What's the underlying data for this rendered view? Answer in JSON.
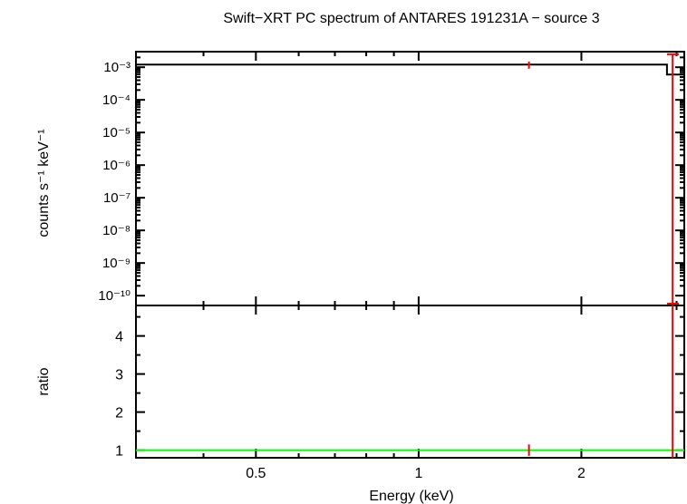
{
  "title": "Swift−XRT PC spectrum of ANTARES 191231A − source 3",
  "colors": {
    "frame": "#000000",
    "data": "#ff0000",
    "model": "#000000",
    "unity": "#00ff00"
  },
  "chart_data": [
    {
      "type": "line",
      "panel": "top",
      "ylabel": "counts s⁻¹ keV⁻¹",
      "yscale": "log",
      "ylim": [
        5e-11,
        0.003
      ],
      "y_ticklabels": [
        "10⁻³",
        "10⁻⁴",
        "10⁻⁵",
        "10⁻⁶",
        "10⁻⁷",
        "10⁻⁸",
        "10⁻⁹",
        "10⁻¹⁰"
      ],
      "y_tickvalues": [
        0.001,
        0.0001,
        1e-05,
        1e-06,
        1e-07,
        1e-08,
        1e-09,
        1e-10
      ],
      "data_points": [
        {
          "x": 1.6,
          "y": 0.0012,
          "y_err_low": 0.0009,
          "y_err_high": 0.0015
        },
        {
          "x": 2.95,
          "y": 0.0025,
          "x_err_low": 2.88,
          "x_err_high": 3.03,
          "y_low": 5e-11
        }
      ],
      "model": [
        {
          "x": 0.3,
          "y": 0.0012
        },
        {
          "x": 2.88,
          "y": 0.0012
        },
        {
          "x": 2.88,
          "y": 0.0006
        },
        {
          "x": 3.1,
          "y": 0.0006
        }
      ]
    },
    {
      "type": "line",
      "panel": "bottom",
      "xlabel": "Energy (keV)",
      "ylabel": "ratio",
      "xscale": "log",
      "xlim": [
        0.3,
        3.1
      ],
      "x_ticklabels": [
        "0.5",
        "1",
        "2"
      ],
      "x_tickvalues": [
        0.5,
        1,
        2
      ],
      "ylim": [
        0.8,
        4.8
      ],
      "y_ticklabels": [
        "1",
        "2",
        "3",
        "4"
      ],
      "y_tickvalues": [
        1,
        2,
        3,
        4
      ],
      "unity_line": 1,
      "data_points": [
        {
          "x": 1.6,
          "y": 1.0,
          "y_err_low": 0.85,
          "y_err_high": 1.15
        },
        {
          "x": 2.95,
          "y": 4.8,
          "y_low": 0.8
        }
      ]
    }
  ]
}
